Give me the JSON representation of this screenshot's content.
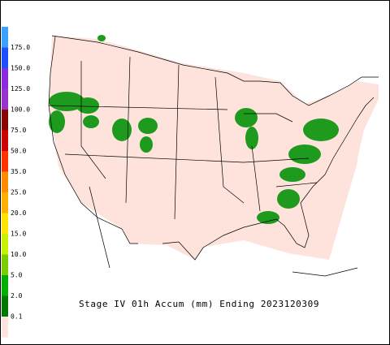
{
  "legend": {
    "labels": [
      "175.0",
      "150.0",
      "125.0",
      "100.0",
      "75.0",
      "50.0",
      "35.0",
      "25.0",
      "20.0",
      "15.0",
      "10.0",
      "5.0",
      "2.0",
      "0.1"
    ],
    "colors": [
      "#3ca0ff",
      "#1e50ff",
      "#8a2be2",
      "#9932cc",
      "#8b0000",
      "#cc0000",
      "#ff3300",
      "#ff8c00",
      "#ffb000",
      "#ffe600",
      "#c8f000",
      "#7ccd00",
      "#00b000",
      "#007800",
      "#ffe4de"
    ]
  },
  "caption": "Stage IV 01h Accum (mm) Ending 2023120309"
}
